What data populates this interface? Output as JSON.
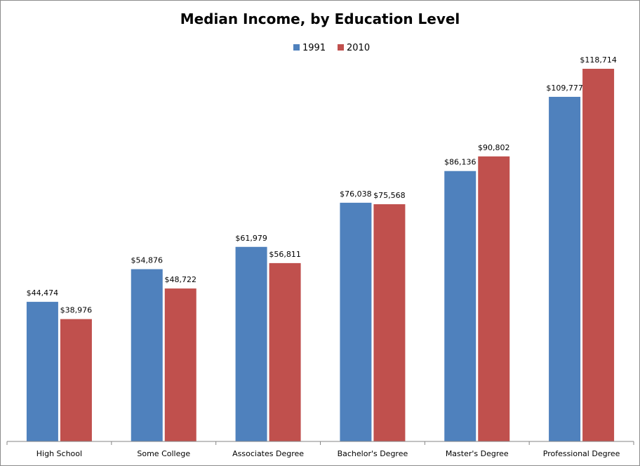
{
  "chart_data": {
    "type": "bar",
    "title": "Median Income, by Education Level",
    "xlabel": "",
    "ylabel": "",
    "categories": [
      "High School",
      "Some College",
      "Associates Degree",
      "Bachelor's Degree",
      "Master's Degree",
      "Professional Degree"
    ],
    "series": [
      {
        "name": "1991",
        "color": "#4f81bd",
        "values": [
          44474,
          54876,
          61979,
          76038,
          86136,
          109777
        ],
        "labels": [
          "$44,474",
          "$54,876",
          "$61,979",
          "$76,038",
          "$86,136",
          "$109,777"
        ]
      },
      {
        "name": "2010",
        "color": "#c0504d",
        "values": [
          38976,
          48722,
          56811,
          75568,
          90802,
          118714
        ],
        "labels": [
          "$38,976",
          "$48,722",
          "$56,811",
          "$75,568",
          "$90,802",
          "$118,714"
        ]
      }
    ],
    "ylim": [
      0,
      130000
    ],
    "grid": false,
    "legend": "top"
  }
}
